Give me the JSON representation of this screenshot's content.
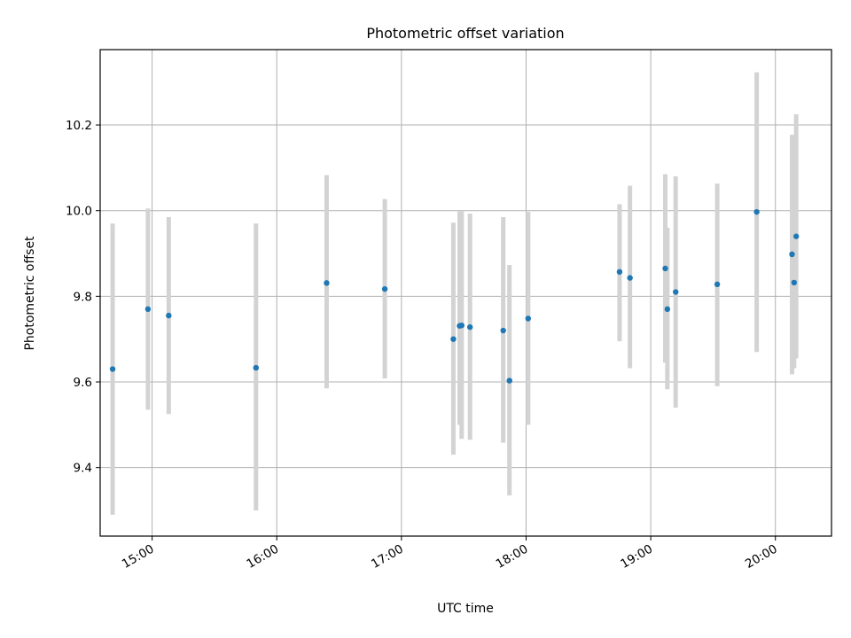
{
  "chart_data": {
    "type": "scatter",
    "title": "Photometric offset variation",
    "xlabel": "UTC time",
    "ylabel": "Photometric offset",
    "x_ticks": [
      "15:00",
      "16:00",
      "17:00",
      "18:00",
      "19:00",
      "20:00"
    ],
    "y_ticks": [
      "9.4",
      "9.6",
      "9.8",
      "10.0",
      "10.2"
    ],
    "xlim": [
      "14:35",
      "20:27"
    ],
    "ylim": [
      9.24,
      10.376
    ],
    "grid": true,
    "point_color": "#1f77b4",
    "errorbar_color": "#d3d3d3",
    "points": [
      {
        "x": "14:41",
        "y": 9.63,
        "ylow": 9.29,
        "yhigh": 9.97
      },
      {
        "x": "14:58",
        "y": 9.77,
        "ylow": 9.535,
        "yhigh": 10.005
      },
      {
        "x": "15:08",
        "y": 9.755,
        "ylow": 9.525,
        "yhigh": 9.985
      },
      {
        "x": "15:50",
        "y": 9.633,
        "ylow": 9.3,
        "yhigh": 9.97
      },
      {
        "x": "16:24",
        "y": 9.831,
        "ylow": 9.585,
        "yhigh": 10.083
      },
      {
        "x": "16:52",
        "y": 9.817,
        "ylow": 9.608,
        "yhigh": 10.027
      },
      {
        "x": "17:25",
        "y": 9.7,
        "ylow": 9.43,
        "yhigh": 9.972
      },
      {
        "x": "17:28",
        "y": 9.731,
        "ylow": 9.5,
        "yhigh": 9.998
      },
      {
        "x": "17:29",
        "y": 9.732,
        "ylow": 9.467,
        "yhigh": 9.998
      },
      {
        "x": "17:33",
        "y": 9.728,
        "ylow": 9.465,
        "yhigh": 9.993
      },
      {
        "x": "17:49",
        "y": 9.72,
        "ylow": 9.458,
        "yhigh": 9.985
      },
      {
        "x": "17:52",
        "y": 9.603,
        "ylow": 9.335,
        "yhigh": 9.873
      },
      {
        "x": "18:01",
        "y": 9.748,
        "ylow": 9.5,
        "yhigh": 9.997
      },
      {
        "x": "18:45",
        "y": 9.857,
        "ylow": 9.695,
        "yhigh": 10.015
      },
      {
        "x": "18:50",
        "y": 9.843,
        "ylow": 9.632,
        "yhigh": 10.058
      },
      {
        "x": "19:07",
        "y": 9.865,
        "ylow": 9.645,
        "yhigh": 10.085
      },
      {
        "x": "19:08",
        "y": 9.77,
        "ylow": 9.583,
        "yhigh": 9.96
      },
      {
        "x": "19:12",
        "y": 9.81,
        "ylow": 9.54,
        "yhigh": 10.08
      },
      {
        "x": "19:32",
        "y": 9.828,
        "ylow": 9.59,
        "yhigh": 10.063
      },
      {
        "x": "19:51",
        "y": 9.997,
        "ylow": 9.67,
        "yhigh": 10.323
      },
      {
        "x": "20:08",
        "y": 9.898,
        "ylow": 9.618,
        "yhigh": 10.177
      },
      {
        "x": "20:09",
        "y": 9.832,
        "ylow": 9.632,
        "yhigh": 10.03
      },
      {
        "x": "20:10",
        "y": 9.94,
        "ylow": 9.655,
        "yhigh": 10.225
      }
    ]
  }
}
